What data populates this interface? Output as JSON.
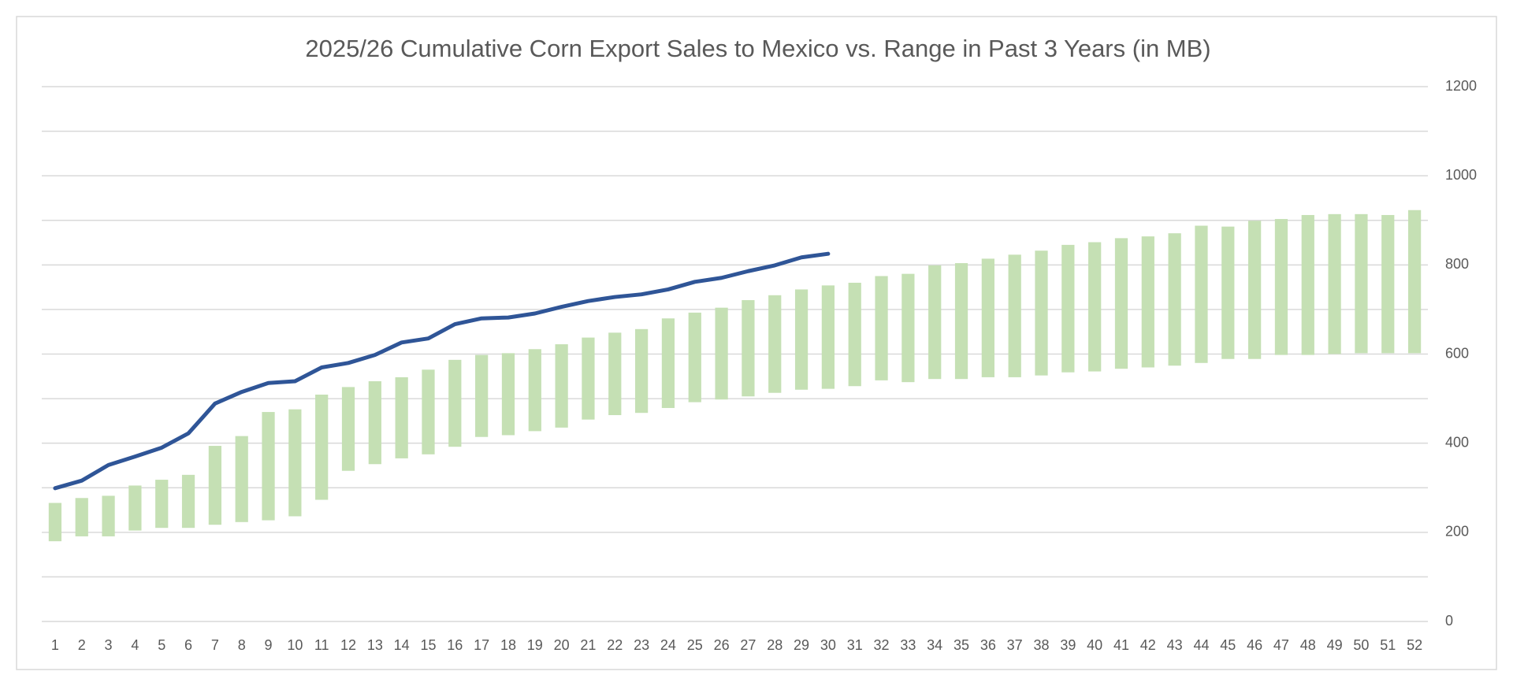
{
  "chart_data": {
    "type": "range-bar-line",
    "title": "2025/26 Cumulative Corn Export Sales to Mexico vs. Range in Past 3 Years (in MB)",
    "categories": [
      1,
      2,
      3,
      4,
      5,
      6,
      7,
      8,
      9,
      10,
      11,
      12,
      13,
      14,
      15,
      16,
      17,
      18,
      19,
      20,
      21,
      22,
      23,
      24,
      25,
      26,
      27,
      28,
      29,
      30,
      31,
      32,
      33,
      34,
      35,
      36,
      37,
      38,
      39,
      40,
      41,
      42,
      43,
      44,
      45,
      46,
      47,
      48,
      49,
      50,
      51,
      52
    ],
    "series": [
      {
        "type": "range-bar",
        "color": "#c5e0b4",
        "low": [
          180,
          191,
          191,
          204,
          210,
          210,
          217,
          223,
          227,
          236,
          273,
          338,
          353,
          366,
          375,
          392,
          414,
          418,
          427,
          435,
          453,
          463,
          468,
          479,
          492,
          498,
          505,
          513,
          520,
          522,
          528,
          541,
          537,
          544,
          544,
          548,
          548,
          552,
          559,
          561,
          567,
          570,
          574,
          580,
          589,
          589,
          598,
          598,
          600,
          602,
          602,
          602
        ],
        "high": [
          266,
          277,
          282,
          305,
          318,
          329,
          394,
          416,
          470,
          476,
          509,
          526,
          539,
          548,
          565,
          587,
          598,
          602,
          611,
          622,
          637,
          648,
          656,
          680,
          693,
          704,
          721,
          732,
          745,
          754,
          760,
          775,
          780,
          799,
          804,
          814,
          823,
          832,
          845,
          851,
          860,
          864,
          871,
          888,
          886,
          899,
          903,
          912,
          914,
          914,
          912,
          923
        ]
      },
      {
        "type": "line",
        "color": "#2f5597",
        "values": [
          299,
          316,
          351,
          370,
          390,
          422,
          489,
          515,
          535,
          539,
          570,
          580,
          598,
          626,
          635,
          667,
          680,
          682,
          691,
          706,
          719,
          728,
          734,
          745,
          762,
          771,
          786,
          799,
          817,
          825,
          null,
          null,
          null,
          null,
          null,
          null,
          null,
          null,
          null,
          null,
          null,
          null,
          null,
          null,
          null,
          null,
          null,
          null,
          null,
          null,
          null,
          null
        ]
      }
    ],
    "ylim": [
      0,
      1200
    ],
    "yticks": [
      0,
      200,
      400,
      600,
      800,
      1000,
      1200
    ],
    "y_minor_ticks": [
      100,
      300,
      500,
      700,
      900,
      1100
    ],
    "y_axis_side": "right",
    "grid": true
  }
}
